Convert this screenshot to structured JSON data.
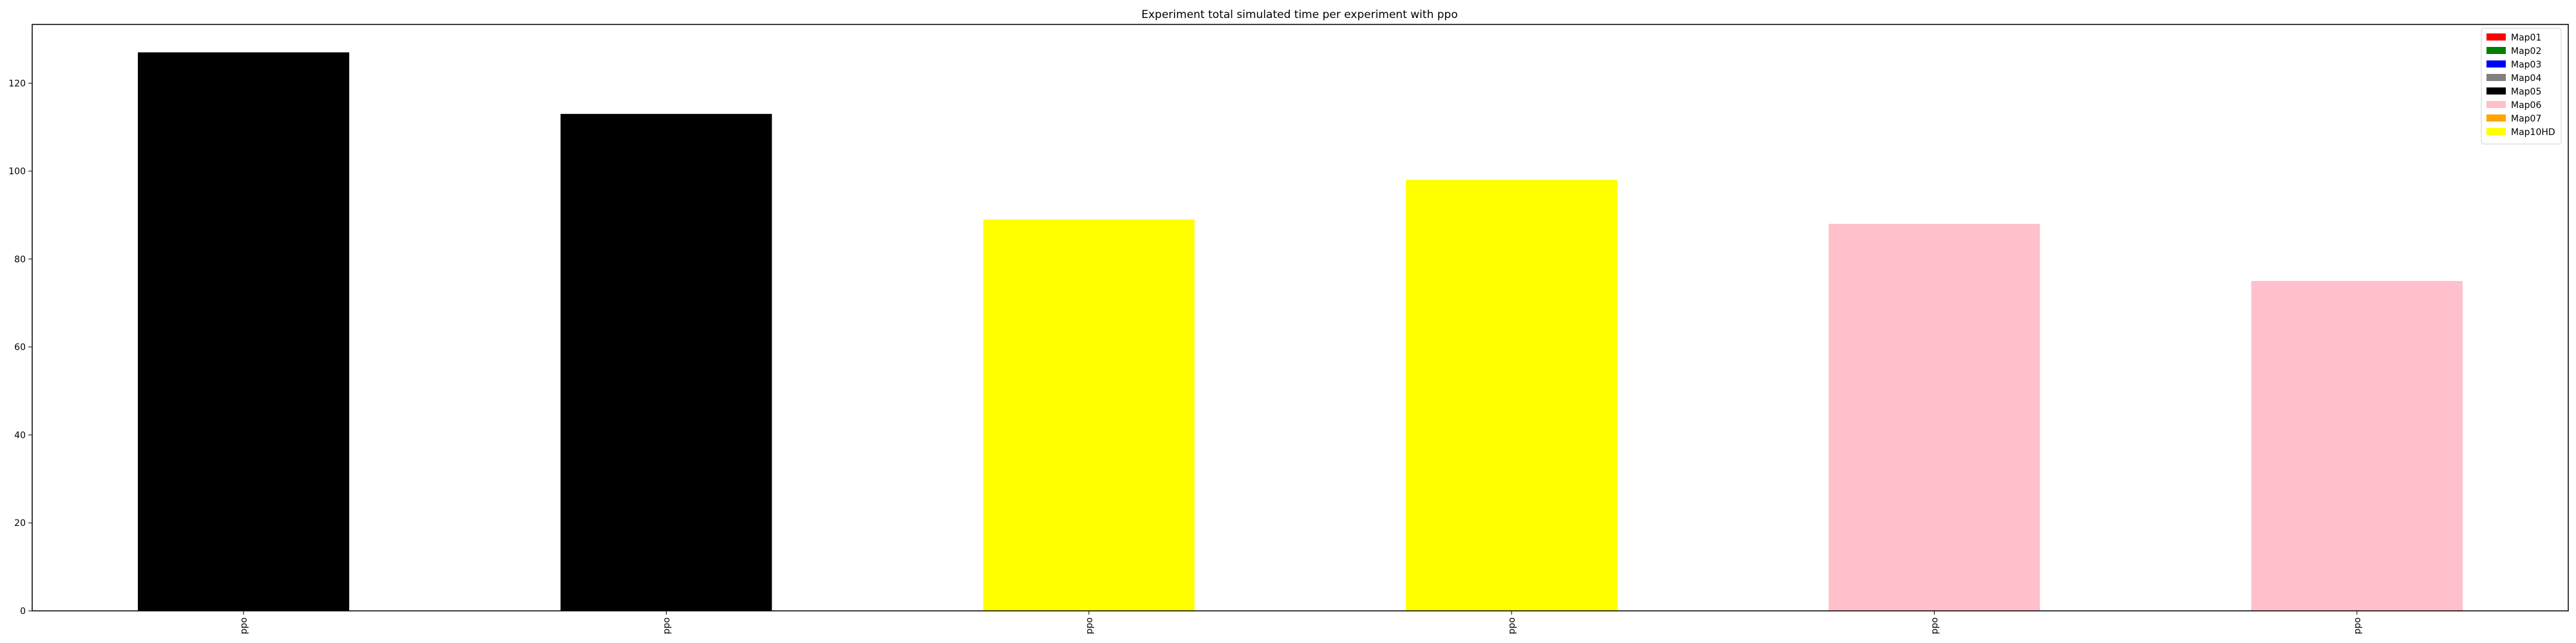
{
  "chart_data": {
    "type": "bar",
    "title": "Experiment total simulated time per experiment with ppo",
    "xlabel": "",
    "ylabel": "",
    "categories": [
      "ppo",
      "ppo",
      "ppo",
      "ppo",
      "ppo",
      "ppo"
    ],
    "values": [
      127,
      113,
      89,
      98,
      88,
      75
    ],
    "bar_colors": [
      "#000000",
      "#000000",
      "#ffff00",
      "#ffff00",
      "#ffc0cb",
      "#ffc0cb"
    ],
    "ylim": [
      0,
      133.35
    ],
    "yticks": [
      0,
      20,
      40,
      60,
      80,
      100,
      120
    ],
    "grid": false,
    "legend_position": "top-right",
    "legend": [
      {
        "label": "Map01",
        "color": "#ff0000"
      },
      {
        "label": "Map02",
        "color": "#008000"
      },
      {
        "label": "Map03",
        "color": "#0000ff"
      },
      {
        "label": "Map04",
        "color": "#808080"
      },
      {
        "label": "Map05",
        "color": "#000000"
      },
      {
        "label": "Map06",
        "color": "#ffc0cb"
      },
      {
        "label": "Map07",
        "color": "#ffa500"
      },
      {
        "label": "Map10HD",
        "color": "#ffff00"
      }
    ]
  }
}
